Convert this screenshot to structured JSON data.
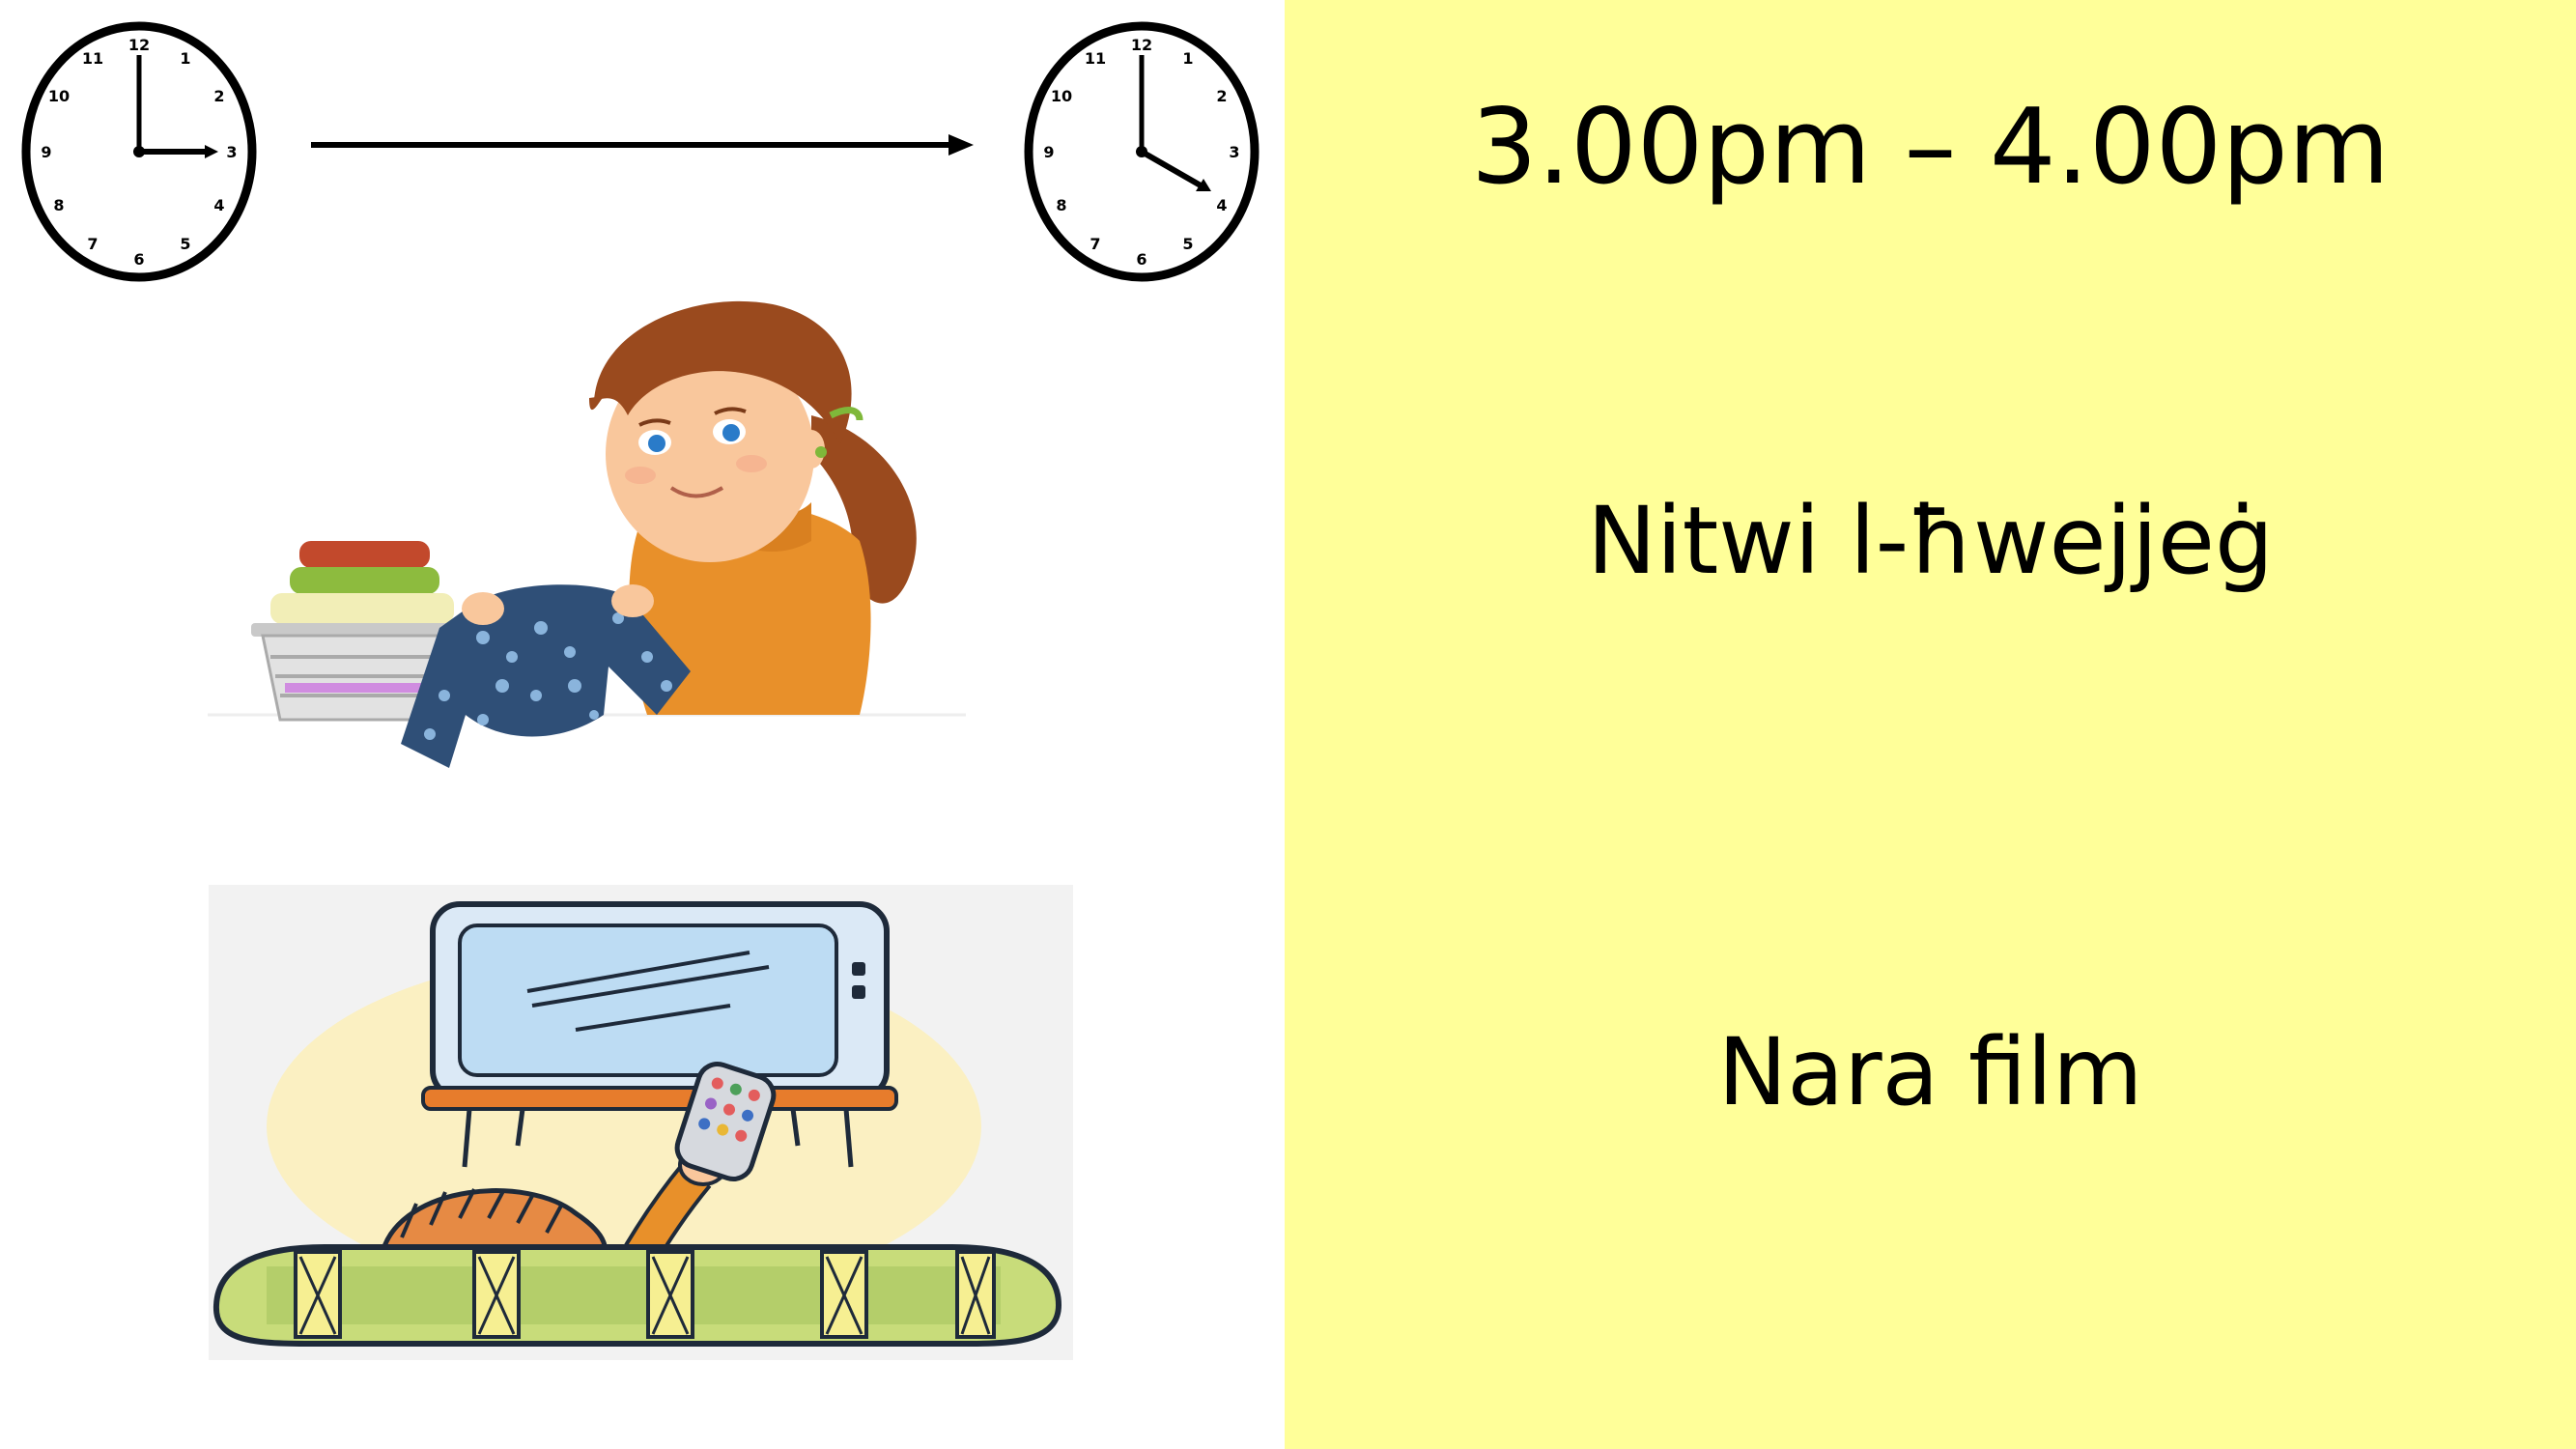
{
  "slide": {
    "time_range": "3.00pm – 4.00pm",
    "activities": [
      "Nitwi l-ħwejjeġ",
      "Nara film"
    ]
  },
  "clocks": [
    {
      "name": "start-clock",
      "shows": "3:00"
    },
    {
      "name": "end-clock",
      "shows": "4:00"
    }
  ],
  "clock_numerals": [
    "12",
    "1",
    "2",
    "3",
    "4",
    "5",
    "6",
    "7",
    "8",
    "9",
    "10",
    "11"
  ],
  "colors": {
    "panel_background": "#ffff99",
    "text": "#000000"
  },
  "icons": [
    "clock-icon",
    "arrow-right-icon",
    "folding-laundry-illustration",
    "watching-tv-illustration"
  ]
}
